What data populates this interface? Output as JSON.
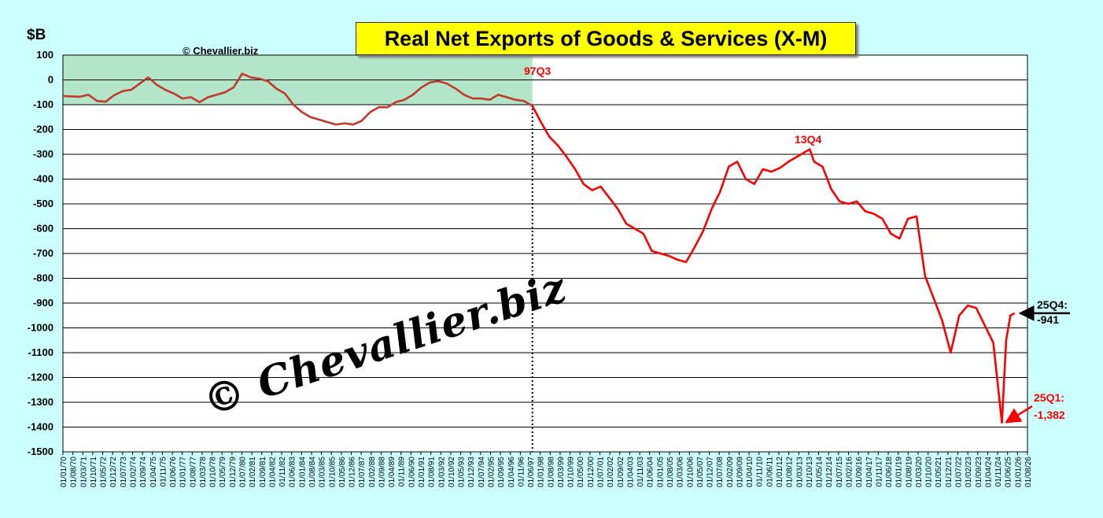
{
  "chart_data": {
    "type": "line",
    "title": "Real Net Exports of Goods & Services (X-M)",
    "ylabel": "$B",
    "copyright_small": "© Chevallier.biz",
    "watermark": "© Chevallier.biz",
    "ylim": [
      -1500,
      100
    ],
    "yticks": [
      100,
      0,
      -100,
      -200,
      -300,
      -400,
      -500,
      -600,
      -700,
      -800,
      -900,
      -1000,
      -1100,
      -1200,
      -1300,
      -1400,
      -1500
    ],
    "x_start_quarter": "1970Q1",
    "x_end_quarter": "2026Q3",
    "xtick_labels": [
      "01/01/70",
      "01/08/70",
      "01/03/71",
      "01/10/71",
      "01/05/72",
      "01/12/72",
      "01/07/73",
      "01/02/74",
      "01/09/74",
      "01/04/75",
      "01/11/75",
      "01/06/76",
      "01/01/77",
      "01/08/77",
      "01/03/78",
      "01/10/78",
      "01/05/79",
      "01/12/79",
      "01/07/80",
      "01/02/81",
      "01/09/81",
      "01/04/82",
      "01/11/82",
      "01/06/83",
      "01/01/84",
      "01/08/84",
      "01/03/85",
      "01/10/85",
      "01/05/86",
      "01/12/86",
      "01/07/87",
      "01/02/88",
      "01/09/88",
      "01/04/89",
      "01/11/89",
      "01/06/90",
      "01/01/91",
      "01/08/91",
      "01/03/92",
      "01/10/92",
      "01/05/93",
      "01/12/93",
      "01/07/94",
      "01/02/95",
      "01/09/95",
      "01/04/96",
      "01/11/96",
      "01/06/97",
      "01/01/98",
      "01/08/98",
      "01/03/99",
      "01/10/99",
      "01/05/00",
      "01/12/00",
      "01/07/01",
      "01/02/02",
      "01/09/02",
      "01/04/03",
      "01/11/03",
      "01/06/04",
      "01/01/05",
      "01/08/05",
      "01/03/06",
      "01/10/06",
      "01/05/07",
      "01/12/07",
      "01/07/08",
      "01/02/09",
      "01/09/09",
      "01/04/10",
      "01/11/10",
      "01/06/11",
      "01/01/12",
      "01/08/12",
      "01/03/13",
      "01/10/13",
      "01/05/14",
      "01/12/14",
      "01/07/15",
      "01/02/16",
      "01/09/16",
      "01/04/17",
      "01/11/17",
      "01/06/18",
      "01/01/19",
      "01/08/19",
      "01/03/20",
      "01/10/20",
      "01/05/21",
      "01/12/21",
      "01/07/22",
      "01/02/23",
      "01/09/23",
      "01/04/24",
      "01/11/24",
      "01/06/25",
      "01/01/26",
      "01/08/26"
    ],
    "shaded_region": {
      "from_quarter": "1970Q1",
      "to_quarter": "1997Q3",
      "ymin": -100,
      "ymax": 100,
      "color": "#b3e6c8"
    },
    "vline_quarter": "1997Q3",
    "series": [
      {
        "color_before_split": "#c0392b",
        "color_after_split": "#ff0000",
        "split_quarter": "1997Q3",
        "points": [
          [
            "1970Q1",
            -65
          ],
          [
            "1971Q1",
            -68
          ],
          [
            "1971Q3",
            -60
          ],
          [
            "1972Q1",
            -85
          ],
          [
            "1972Q3",
            -88
          ],
          [
            "1973Q1",
            -62
          ],
          [
            "1973Q3",
            -45
          ],
          [
            "1974Q1",
            -40
          ],
          [
            "1974Q3",
            -15
          ],
          [
            "1975Q1",
            10
          ],
          [
            "1975Q3",
            -20
          ],
          [
            "1976Q1",
            -40
          ],
          [
            "1976Q3",
            -55
          ],
          [
            "1977Q1",
            -75
          ],
          [
            "1977Q3",
            -70
          ],
          [
            "1978Q1",
            -90
          ],
          [
            "1978Q3",
            -70
          ],
          [
            "1979Q1",
            -60
          ],
          [
            "1979Q3",
            -50
          ],
          [
            "1980Q1",
            -30
          ],
          [
            "1980Q3",
            25
          ],
          [
            "1981Q1",
            10
          ],
          [
            "1981Q3",
            5
          ],
          [
            "1982Q1",
            -5
          ],
          [
            "1982Q3",
            -35
          ],
          [
            "1983Q1",
            -55
          ],
          [
            "1983Q3",
            -100
          ],
          [
            "1984Q1",
            -130
          ],
          [
            "1984Q3",
            -150
          ],
          [
            "1985Q1",
            -160
          ],
          [
            "1985Q3",
            -170
          ],
          [
            "1986Q1",
            -180
          ],
          [
            "1986Q3",
            -175
          ],
          [
            "1987Q1",
            -180
          ],
          [
            "1987Q3",
            -165
          ],
          [
            "1988Q1",
            -130
          ],
          [
            "1988Q3",
            -110
          ],
          [
            "1989Q1",
            -110
          ],
          [
            "1989Q3",
            -90
          ],
          [
            "1990Q1",
            -80
          ],
          [
            "1990Q3",
            -60
          ],
          [
            "1991Q1",
            -30
          ],
          [
            "1991Q3",
            -10
          ],
          [
            "1992Q1",
            -5
          ],
          [
            "1992Q3",
            -15
          ],
          [
            "1993Q1",
            -35
          ],
          [
            "1993Q3",
            -60
          ],
          [
            "1994Q1",
            -75
          ],
          [
            "1994Q3",
            -75
          ],
          [
            "1995Q1",
            -80
          ],
          [
            "1995Q3",
            -60
          ],
          [
            "1996Q1",
            -70
          ],
          [
            "1996Q3",
            -80
          ],
          [
            "1997Q1",
            -85
          ],
          [
            "1997Q3",
            -105
          ],
          [
            "1998Q1",
            -170
          ],
          [
            "1998Q3",
            -230
          ],
          [
            "1999Q1",
            -265
          ],
          [
            "1999Q3",
            -310
          ],
          [
            "2000Q1",
            -360
          ],
          [
            "2000Q3",
            -420
          ],
          [
            "2001Q1",
            -445
          ],
          [
            "2001Q3",
            -430
          ],
          [
            "2002Q1",
            -475
          ],
          [
            "2002Q3",
            -520
          ],
          [
            "2003Q1",
            -580
          ],
          [
            "2003Q3",
            -600
          ],
          [
            "2004Q1",
            -620
          ],
          [
            "2004Q3",
            -690
          ],
          [
            "2005Q1",
            -700
          ],
          [
            "2005Q3",
            -710
          ],
          [
            "2006Q1",
            -725
          ],
          [
            "2006Q3",
            -735
          ],
          [
            "2007Q1",
            -675
          ],
          [
            "2007Q3",
            -610
          ],
          [
            "2008Q1",
            -520
          ],
          [
            "2008Q3",
            -450
          ],
          [
            "2009Q1",
            -350
          ],
          [
            "2009Q3",
            -330
          ],
          [
            "2010Q1",
            -400
          ],
          [
            "2010Q3",
            -420
          ],
          [
            "2011Q1",
            -360
          ],
          [
            "2011Q3",
            -370
          ],
          [
            "2012Q1",
            -355
          ],
          [
            "2012Q3",
            -330
          ],
          [
            "2013Q1",
            -310
          ],
          [
            "2013Q3",
            -290
          ],
          [
            "2013Q4",
            -280
          ],
          [
            "2014Q1",
            -330
          ],
          [
            "2014Q3",
            -350
          ],
          [
            "2015Q1",
            -440
          ],
          [
            "2015Q3",
            -490
          ],
          [
            "2016Q1",
            -500
          ],
          [
            "2016Q3",
            -490
          ],
          [
            "2017Q1",
            -530
          ],
          [
            "2017Q3",
            -540
          ],
          [
            "2018Q1",
            -560
          ],
          [
            "2018Q3",
            -620
          ],
          [
            "2019Q1",
            -640
          ],
          [
            "2019Q3",
            -560
          ],
          [
            "2020Q1",
            -550
          ],
          [
            "2020Q3",
            -790
          ],
          [
            "2021Q1",
            -880
          ],
          [
            "2021Q3",
            -970
          ],
          [
            "2022Q1",
            -1100
          ],
          [
            "2022Q3",
            -950
          ],
          [
            "2023Q1",
            -910
          ],
          [
            "2023Q3",
            -920
          ],
          [
            "2024Q1",
            -990
          ],
          [
            "2024Q3",
            -1060
          ],
          [
            "2025Q1",
            -1382
          ],
          [
            "2025Q2",
            -1050
          ],
          [
            "2025Q3",
            -950
          ],
          [
            "2025Q4",
            -941
          ]
        ]
      }
    ],
    "annotations": [
      {
        "text": "97Q3",
        "quarter": "1997Q3",
        "value": 100,
        "color": "#ff0000"
      },
      {
        "text": "13Q4",
        "quarter": "2013Q4",
        "value": -280,
        "color": "#ff0000"
      },
      {
        "text": "25Q4:",
        "text2": "-941",
        "quarter": "2025Q4",
        "value": -941,
        "color": "#000000"
      },
      {
        "text": "25Q1:",
        "text2": "-1,382",
        "quarter": "2025Q1",
        "value": -1382,
        "color": "#ff0000"
      }
    ]
  }
}
